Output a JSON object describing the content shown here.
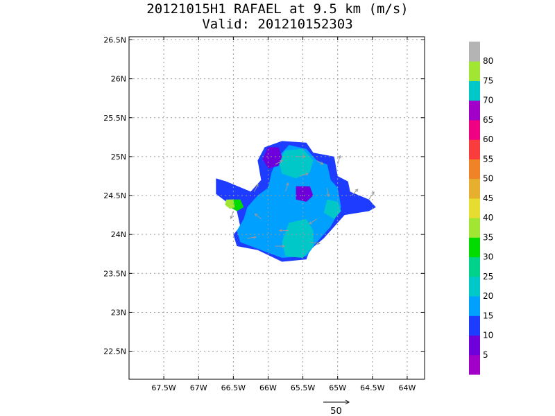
{
  "chart_data": {
    "type": "heatmap",
    "title": "20121015H1 RAFAEL at 9.5 km (m/s)",
    "subtitle": "Valid: 201210152303",
    "xlim": [
      -68,
      -63.75
    ],
    "ylim": [
      22.14,
      26.54
    ],
    "x_ticks": [
      -67.5,
      -67,
      -66.5,
      -66,
      -65.5,
      -65,
      -64.5,
      -64
    ],
    "x_tick_labels": [
      "67.5W",
      "67W",
      "66.5W",
      "66W",
      "65.5W",
      "65W",
      "64.5W",
      "64W"
    ],
    "y_ticks": [
      22.5,
      23,
      23.5,
      24,
      24.5,
      25,
      25.5,
      26,
      26.5
    ],
    "y_tick_labels": [
      "22.5N",
      "23N",
      "23.5N",
      "24N",
      "24.5N",
      "25N",
      "25.5N",
      "26N",
      "26.5N"
    ],
    "grid": true,
    "colorbar": {
      "levels": [
        5,
        10,
        15,
        20,
        25,
        30,
        35,
        40,
        45,
        50,
        55,
        60,
        65,
        70,
        75,
        80
      ],
      "colors": [
        "#a000c8",
        "#6e00dc",
        "#1e3cff",
        "#00a0ff",
        "#00c8c8",
        "#00d28c",
        "#00dc00",
        "#a0e632",
        "#e6dc32",
        "#e6af2d",
        "#f08228",
        "#fa3c3c",
        "#f00082",
        "#a000c8",
        "#00c8c8",
        "#a0e632",
        "#b4b4b4"
      ]
    },
    "reference_vector": {
      "label": "50",
      "magnitude": 50
    },
    "wind_speed_regions": [
      {
        "level": 15,
        "polygon": [
          [
            -65.45,
            25.18
          ],
          [
            -65.35,
            25.05
          ],
          [
            -65.05,
            25.0
          ],
          [
            -65.0,
            24.75
          ],
          [
            -64.85,
            24.68
          ],
          [
            -64.82,
            24.55
          ],
          [
            -64.55,
            24.45
          ],
          [
            -64.45,
            24.35
          ],
          [
            -64.55,
            24.3
          ],
          [
            -64.9,
            24.25
          ],
          [
            -65.1,
            24.05
          ],
          [
            -65.2,
            23.95
          ],
          [
            -65.4,
            23.8
          ],
          [
            -65.45,
            23.68
          ],
          [
            -65.8,
            23.65
          ],
          [
            -66.15,
            23.8
          ],
          [
            -66.45,
            23.85
          ],
          [
            -66.5,
            24.0
          ],
          [
            -66.4,
            24.1
          ],
          [
            -66.45,
            24.3
          ],
          [
            -66.6,
            24.42
          ],
          [
            -66.75,
            24.52
          ],
          [
            -66.75,
            24.72
          ],
          [
            -66.6,
            24.68
          ],
          [
            -66.25,
            24.55
          ],
          [
            -66.1,
            24.7
          ],
          [
            -66.15,
            24.95
          ],
          [
            -66.05,
            25.12
          ],
          [
            -65.8,
            25.2
          ]
        ]
      },
      {
        "level": 20,
        "polygon": [
          [
            -65.7,
            25.15
          ],
          [
            -65.45,
            25.1
          ],
          [
            -65.3,
            24.95
          ],
          [
            -65.15,
            24.9
          ],
          [
            -65.1,
            24.7
          ],
          [
            -65.0,
            24.6
          ],
          [
            -64.95,
            24.35
          ],
          [
            -65.1,
            24.1
          ],
          [
            -65.3,
            23.9
          ],
          [
            -65.45,
            23.72
          ],
          [
            -65.8,
            23.7
          ],
          [
            -66.1,
            23.8
          ],
          [
            -66.4,
            23.9
          ],
          [
            -66.45,
            24.05
          ],
          [
            -66.35,
            24.2
          ],
          [
            -66.3,
            24.35
          ],
          [
            -66.15,
            24.5
          ],
          [
            -66.0,
            24.6
          ],
          [
            -65.95,
            24.8
          ],
          [
            -65.85,
            25.0
          ]
        ]
      },
      {
        "level": 25,
        "polygon": [
          [
            -65.75,
            25.08
          ],
          [
            -65.5,
            25.1
          ],
          [
            -65.35,
            24.95
          ],
          [
            -65.4,
            24.8
          ],
          [
            -65.6,
            24.72
          ],
          [
            -65.8,
            24.78
          ],
          [
            -65.85,
            24.95
          ]
        ]
      },
      {
        "level": 25,
        "polygon": [
          [
            -65.7,
            24.15
          ],
          [
            -65.45,
            24.2
          ],
          [
            -65.35,
            24.05
          ],
          [
            -65.35,
            23.85
          ],
          [
            -65.5,
            23.7
          ],
          [
            -65.75,
            23.72
          ],
          [
            -65.8,
            23.9
          ]
        ]
      },
      {
        "level": 25,
        "polygon": [
          [
            -65.15,
            24.45
          ],
          [
            -65.0,
            24.42
          ],
          [
            -64.95,
            24.3
          ],
          [
            -65.05,
            24.2
          ],
          [
            -65.2,
            24.28
          ]
        ]
      },
      {
        "level": 10,
        "polygon": [
          [
            -66.0,
            25.12
          ],
          [
            -65.85,
            25.12
          ],
          [
            -65.8,
            25.0
          ],
          [
            -65.85,
            24.88
          ],
          [
            -66.0,
            24.85
          ],
          [
            -66.08,
            24.97
          ]
        ]
      },
      {
        "level": 10,
        "polygon": [
          [
            -65.6,
            24.62
          ],
          [
            -65.4,
            24.62
          ],
          [
            -65.35,
            24.5
          ],
          [
            -65.45,
            24.42
          ],
          [
            -65.6,
            24.45
          ]
        ]
      },
      {
        "level": 35,
        "polygon": [
          [
            -66.55,
            24.45
          ],
          [
            -66.4,
            24.45
          ],
          [
            -66.35,
            24.35
          ],
          [
            -66.45,
            24.3
          ],
          [
            -66.55,
            24.35
          ]
        ]
      },
      {
        "level": 40,
        "polygon": [
          [
            -66.6,
            24.45
          ],
          [
            -66.5,
            24.45
          ],
          [
            -66.48,
            24.35
          ],
          [
            -66.55,
            24.33
          ],
          [
            -66.62,
            24.38
          ]
        ]
      }
    ],
    "wind_vectors": [
      {
        "lon": -65.9,
        "lat": 24.9,
        "u": 12,
        "v": 6
      },
      {
        "lon": -65.6,
        "lat": 25.0,
        "u": 15,
        "v": 0
      },
      {
        "lon": -65.3,
        "lat": 24.95,
        "u": 10,
        "v": -6
      },
      {
        "lon": -65.15,
        "lat": 24.6,
        "u": 2,
        "v": -14
      },
      {
        "lon": -65.3,
        "lat": 24.2,
        "u": -12,
        "v": -8
      },
      {
        "lon": -65.7,
        "lat": 24.05,
        "u": -15,
        "v": 0
      },
      {
        "lon": -66.1,
        "lat": 24.2,
        "u": -10,
        "v": 8
      },
      {
        "lon": -66.2,
        "lat": 24.55,
        "u": 6,
        "v": 12
      },
      {
        "lon": -66.3,
        "lat": 23.95,
        "u": 14,
        "v": 2
      },
      {
        "lon": -65.9,
        "lat": 23.85,
        "u": 15,
        "v": 0
      },
      {
        "lon": -65.4,
        "lat": 23.9,
        "u": 16,
        "v": -2
      },
      {
        "lon": -64.8,
        "lat": 24.5,
        "u": 10,
        "v": 10
      },
      {
        "lon": -64.55,
        "lat": 24.45,
        "u": 8,
        "v": 12
      },
      {
        "lon": -65.0,
        "lat": 24.9,
        "u": 4,
        "v": 14
      },
      {
        "lon": -66.5,
        "lat": 24.3,
        "u": -4,
        "v": -12
      },
      {
        "lon": -65.75,
        "lat": 24.55,
        "u": 4,
        "v": 14
      },
      {
        "lon": -65.55,
        "lat": 24.75,
        "u": 14,
        "v": 4
      }
    ]
  }
}
